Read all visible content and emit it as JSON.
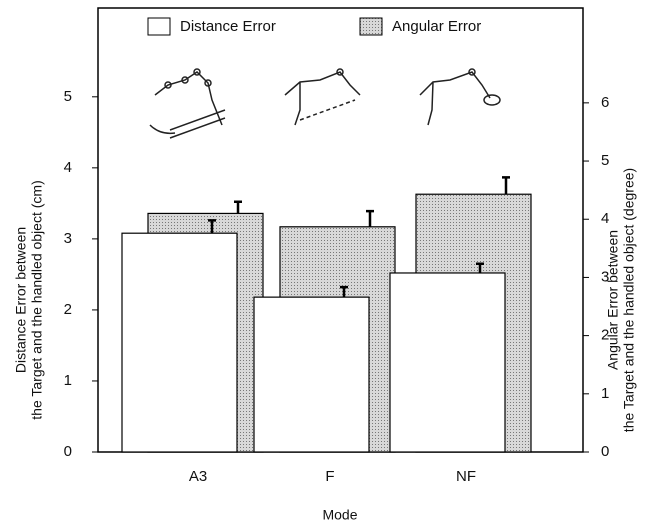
{
  "chart_data": {
    "type": "bar",
    "x_label": "Mode",
    "y_label": [
      "Distance Error between",
      "the Target and the handled object (cm)"
    ],
    "y2_label": [
      "Angular Error between",
      "the Target and the handled object (degree)"
    ],
    "categories": [
      "A3",
      "F",
      "NF"
    ],
    "series": [
      {
        "name": "Distance Error",
        "color": "#ffffff",
        "values": [
          3.08,
          2.18,
          2.52
        ],
        "errors": [
          0.18,
          0.14,
          0.13
        ]
      },
      {
        "name": "Angular Error",
        "color": "#c4c4c4",
        "axis": "y2",
        "values": [
          4.1,
          3.87,
          4.43
        ],
        "errors": [
          0.2,
          0.27,
          0.29
        ]
      }
    ],
    "ylim": [
      0,
      6.25
    ],
    "yticks": [
      0,
      1,
      2,
      3,
      4,
      5
    ],
    "y2lim": [
      0,
      7.63
    ],
    "y2ticks": [
      0,
      1,
      2,
      3,
      4,
      5,
      6
    ],
    "legend": "top"
  }
}
